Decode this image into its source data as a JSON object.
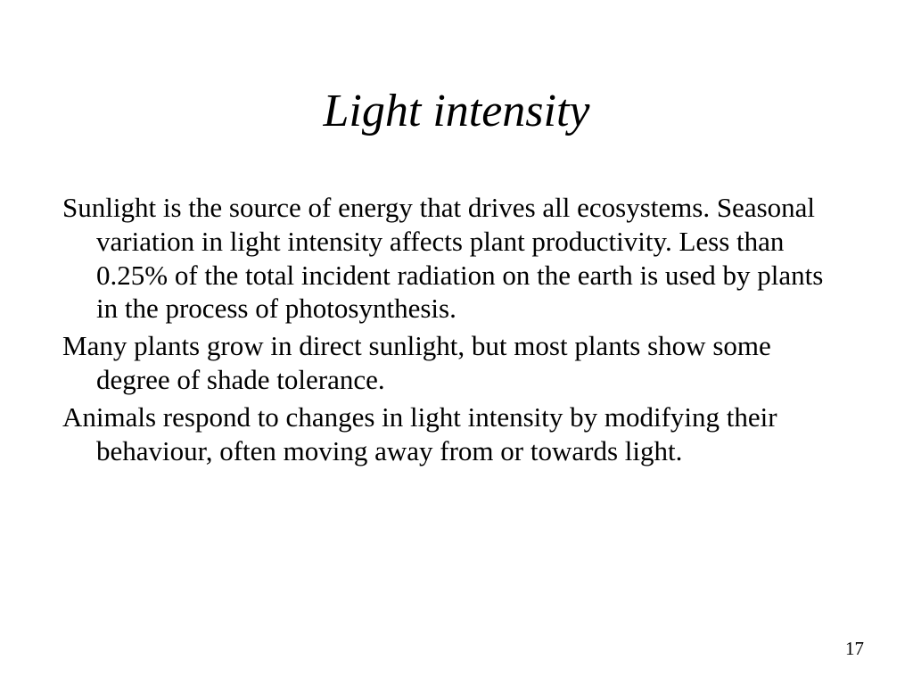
{
  "slide": {
    "title": "Light intensity",
    "paragraphs": [
      "Sunlight is the source of energy that drives all ecosystems. Seasonal variation in light intensity affects plant productivity. Less than 0.25% of the total incident radiation on the earth is used by plants in the process of photosynthesis.",
      "Many plants grow in direct sunlight, but most plants show some degree of shade tolerance.",
      "Animals respond to changes in light intensity by modifying their behaviour, often moving away from or towards light."
    ],
    "page_number": "17"
  },
  "styling": {
    "background_color": "#ffffff",
    "text_color": "#000000",
    "title_fontsize": 52,
    "title_style": "italic",
    "body_fontsize": 31,
    "font_family": "Times New Roman",
    "page_number_fontsize": 21
  }
}
